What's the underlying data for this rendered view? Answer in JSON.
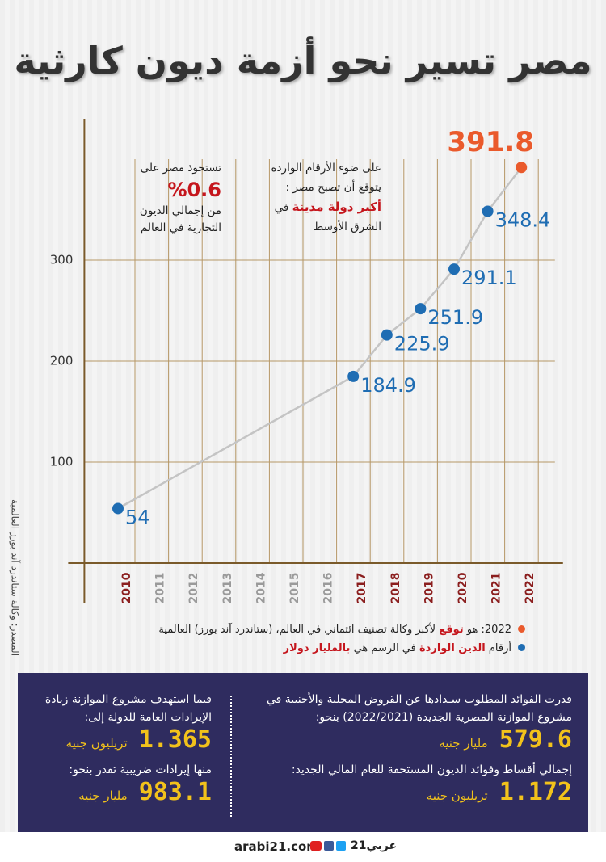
{
  "chart_data": {
    "type": "line",
    "title": "مصر تسير نحو أزمة ديون كارثية",
    "x": [
      2010,
      2017,
      2018,
      2019,
      2020,
      2021,
      2022
    ],
    "xlim": [
      2009,
      2023
    ],
    "xticks": [
      2010,
      2011,
      2012,
      2013,
      2014,
      2015,
      2016,
      2017,
      2018,
      2019,
      2020,
      2021,
      2022
    ],
    "ylim": [
      0,
      440
    ],
    "yticks": [
      100,
      200,
      300
    ],
    "grid": true,
    "line_color": "#c4c4c4",
    "grid_color": "#b69766",
    "series": [
      {
        "values": [
          54,
          184.9,
          225.9,
          251.9,
          291.1,
          348.4,
          391.8
        ],
        "colors": [
          "#1f6db3",
          "#1f6db3",
          "#1f6db3",
          "#1f6db3",
          "#1f6db3",
          "#1f6db3",
          "#ea5a2c"
        ]
      }
    ],
    "annotations": [
      {
        "lines": [
          "على ضوء الأرقام الواردة",
          "يتوقع أن تصبح مصر :"
        ],
        "highlight": "أكبر دولة مدينة",
        "after": "في",
        "last": "الشرق الأوسط"
      },
      {
        "lines": [
          "تستحوذ مصر على"
        ],
        "highlight": "%0.6",
        "after_lines": [
          "من إجمالي الديون",
          "التجارية في العالم"
        ]
      }
    ],
    "legend": [
      {
        "color": "#ea5a2c",
        "before": "2022: هو",
        "highlight": "توقع",
        "after": "لأكبر وكالة تصنيف ائتماني في العالم،  (ستاندرد آند بورز) العالمية"
      },
      {
        "color": "#1f6db3",
        "before": "أرقام",
        "highlight": "الدين الواردة",
        "after": "في الرسم هي",
        "highlight2": "بالمليار دولار"
      }
    ],
    "source": "المصدر: وكالة ستاندرد آند بورز العالمية"
  },
  "panel": {
    "right": [
      {
        "text": "قدرت الفوائد المطلوب سـدادها عن القروض المحلية والأجنبية في مشروع الموازنة المصرية الجديدة (2022/2021) بنحو:",
        "value": "579.6",
        "unit": "مليار جنيه"
      },
      {
        "text": "إجمالي أقساط وفوائد الديون المستحقة للعام المالي الجديد:",
        "value": "1.172",
        "unit": "تريليون جنيه"
      }
    ],
    "left": [
      {
        "text": "فيما استهدف مشروع الموازنة زيادة الإيرادات العامة للدولة إلى:",
        "value": "1.365",
        "unit": "تريليون جنيه"
      },
      {
        "text": "منها إيرادات ضريبية تقدر بنحو:",
        "value": "983.1",
        "unit": "مليار جنيه"
      }
    ]
  },
  "footer": {
    "site": "arabi21.com",
    "logo": "عربي21"
  }
}
